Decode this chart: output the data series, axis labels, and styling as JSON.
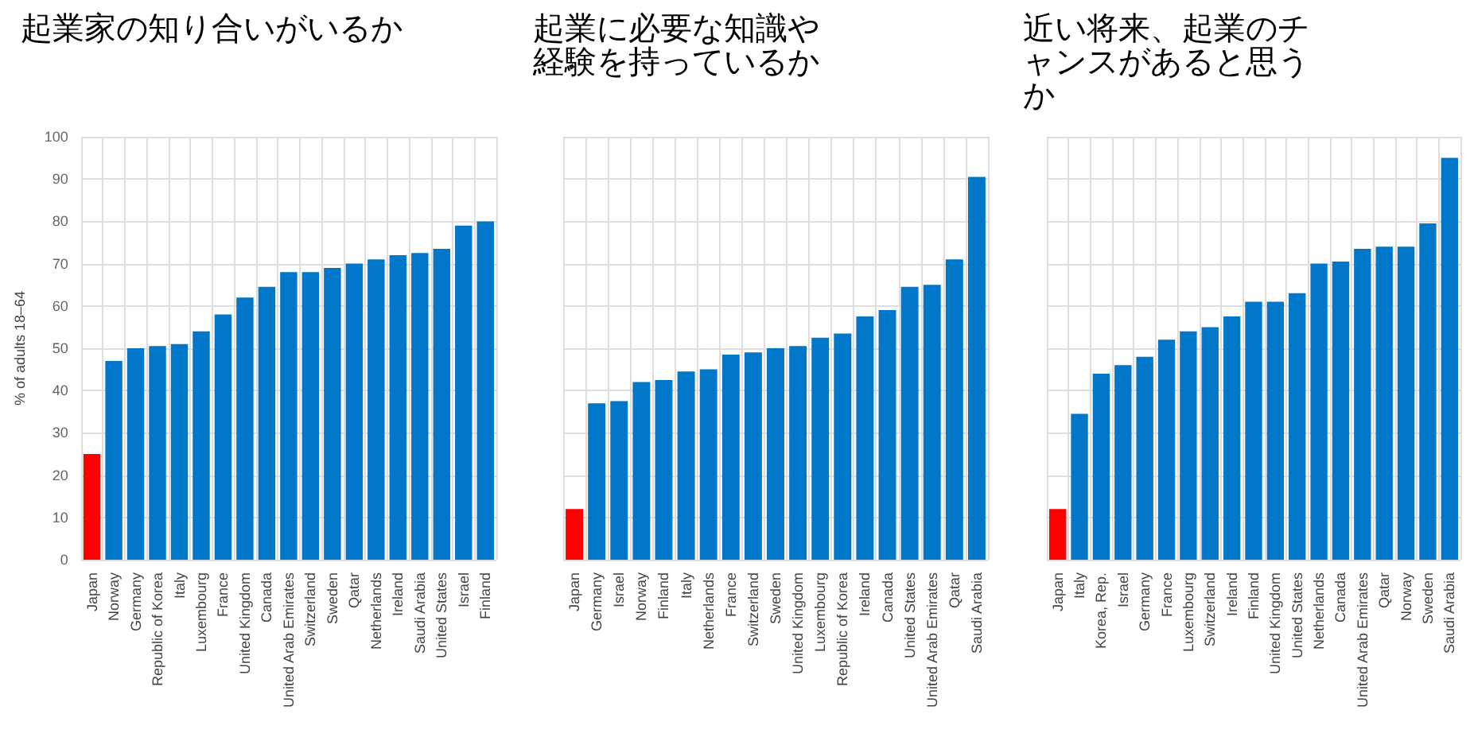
{
  "chart_data": [
    {
      "type": "bar",
      "title": "起業家の知り合いがいるか",
      "ylabel": "% of adults 18–64",
      "categories": [
        "Japan",
        "Norway",
        "Germany",
        "Republic of Korea",
        "Italy",
        "Luxembourg",
        "France",
        "United Kingdom",
        "Canada",
        "United Arab Emirates",
        "Switzerland",
        "Sweden",
        "Qatar",
        "Netherlands",
        "Ireland",
        "Saudi Arabia",
        "United States",
        "Israel",
        "Finland"
      ],
      "values": [
        25,
        47,
        50,
        50.5,
        51,
        54,
        58,
        62,
        64.5,
        68,
        68,
        69,
        70,
        71,
        72,
        72.5,
        73.5,
        79,
        80
      ],
      "colors": [
        "#ff0000",
        "#0077c8",
        "#0077c8",
        "#0077c8",
        "#0077c8",
        "#0077c8",
        "#0077c8",
        "#0077c8",
        "#0077c8",
        "#0077c8",
        "#0077c8",
        "#0077c8",
        "#0077c8",
        "#0077c8",
        "#0077c8",
        "#0077c8",
        "#0077c8",
        "#0077c8",
        "#0077c8"
      ],
      "ylim": [
        0,
        100
      ],
      "yticks": [
        0,
        10,
        20,
        30,
        40,
        50,
        60,
        70,
        80,
        90,
        100
      ],
      "grid": true
    },
    {
      "type": "bar",
      "title": "起業に必要な知識や経験を持っているか",
      "categories": [
        "Japan",
        "Germany",
        "Israel",
        "Norway",
        "Finland",
        "Italy",
        "Netherlands",
        "France",
        "Switzerland",
        "Sweden",
        "United Kingdom",
        "Luxembourg",
        "Republic of Korea",
        "Ireland",
        "Canada",
        "United States",
        "United Arab Emirates",
        "Qatar",
        "Saudi Arabia"
      ],
      "values": [
        12,
        37,
        37.5,
        42,
        42.5,
        44.5,
        45,
        48.5,
        49,
        50,
        50.5,
        52.5,
        53.5,
        57.5,
        59,
        64.5,
        65,
        71,
        90.5
      ],
      "colors": [
        "#ff0000",
        "#0077c8",
        "#0077c8",
        "#0077c8",
        "#0077c8",
        "#0077c8",
        "#0077c8",
        "#0077c8",
        "#0077c8",
        "#0077c8",
        "#0077c8",
        "#0077c8",
        "#0077c8",
        "#0077c8",
        "#0077c8",
        "#0077c8",
        "#0077c8",
        "#0077c8",
        "#0077c8"
      ],
      "ylim": [
        0,
        100
      ],
      "yticks": [
        0,
        10,
        20,
        30,
        40,
        50,
        60,
        70,
        80,
        90,
        100
      ],
      "grid": true,
      "tick_labels": "x"
    },
    {
      "type": "bar",
      "title": "近い将来、起業のチャンスがあると思うか",
      "categories": [
        "Japan",
        "Italy",
        "Korea, Rep.",
        "Israel",
        "Germany",
        "France",
        "Luxembourg",
        "Switzerland",
        "Ireland",
        "Finland",
        "United Kingdom",
        "United States",
        "Netherlands",
        "Canada",
        "United Arab Emirates",
        "Qatar",
        "Norway",
        "Sweden",
        "Saudi Arabia"
      ],
      "values": [
        12,
        34.5,
        44,
        46,
        48,
        52,
        54,
        55,
        57.5,
        61,
        61,
        63,
        70,
        70.5,
        73.5,
        74,
        74,
        79.5,
        95
      ],
      "colors": [
        "#ff0000",
        "#0077c8",
        "#0077c8",
        "#0077c8",
        "#0077c8",
        "#0077c8",
        "#0077c8",
        "#0077c8",
        "#0077c8",
        "#0077c8",
        "#0077c8",
        "#0077c8",
        "#0077c8",
        "#0077c8",
        "#0077c8",
        "#0077c8",
        "#0077c8",
        "#0077c8",
        "#0077c8"
      ],
      "ylim": [
        0,
        100
      ],
      "yticks": [
        0,
        10,
        20,
        30,
        40,
        50,
        60,
        70,
        80,
        90,
        100
      ],
      "grid": true,
      "tick_labels": "x"
    }
  ]
}
